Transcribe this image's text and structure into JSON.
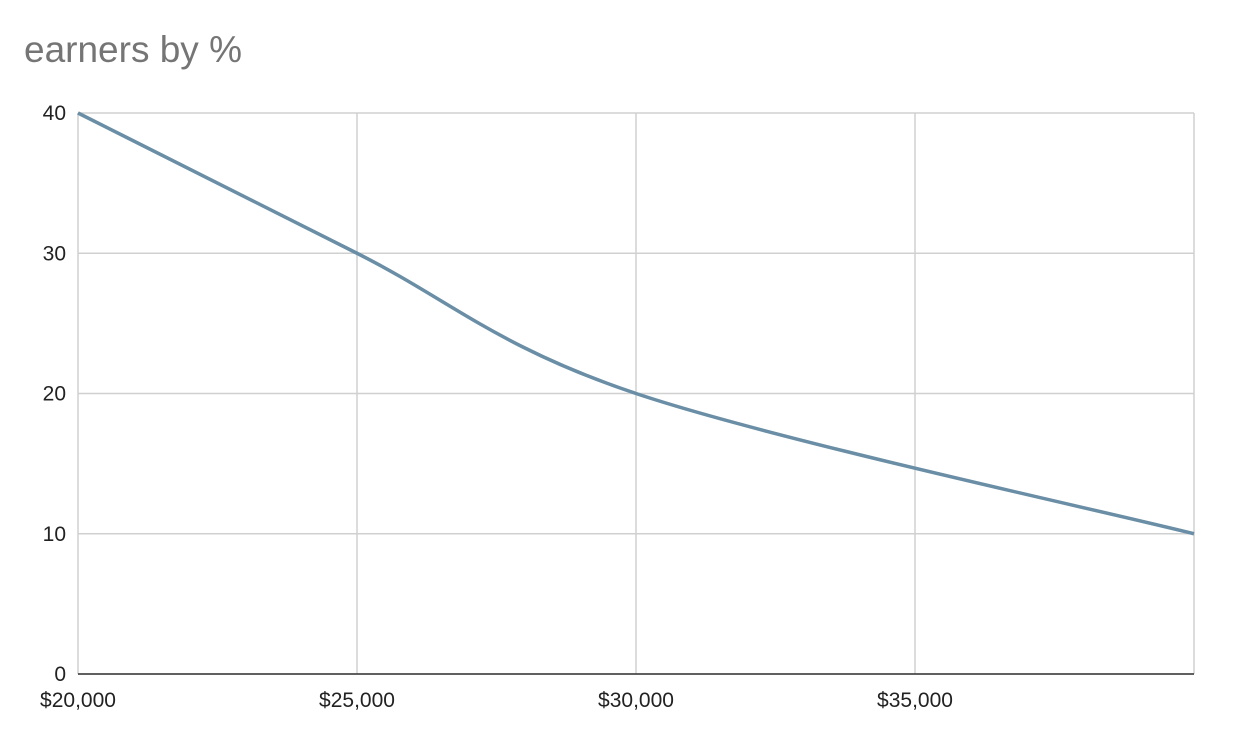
{
  "chart_data": {
    "type": "line",
    "title": "earners by %",
    "x": [
      20000,
      25000,
      30000,
      40000
    ],
    "values": [
      40,
      30,
      20,
      10
    ],
    "color": "#6a8ea6",
    "smooth": true,
    "xlim": [
      20000,
      40000
    ],
    "xticks": [
      {
        "value": 20000,
        "label": "$20,000"
      },
      {
        "value": 25000,
        "label": "$25,000"
      },
      {
        "value": 30000,
        "label": "$30,000"
      },
      {
        "value": 35000,
        "label": "$35,000"
      }
    ],
    "ylim": [
      0,
      40
    ],
    "yticks": [
      0,
      10,
      20,
      30,
      40
    ],
    "grid": true
  }
}
